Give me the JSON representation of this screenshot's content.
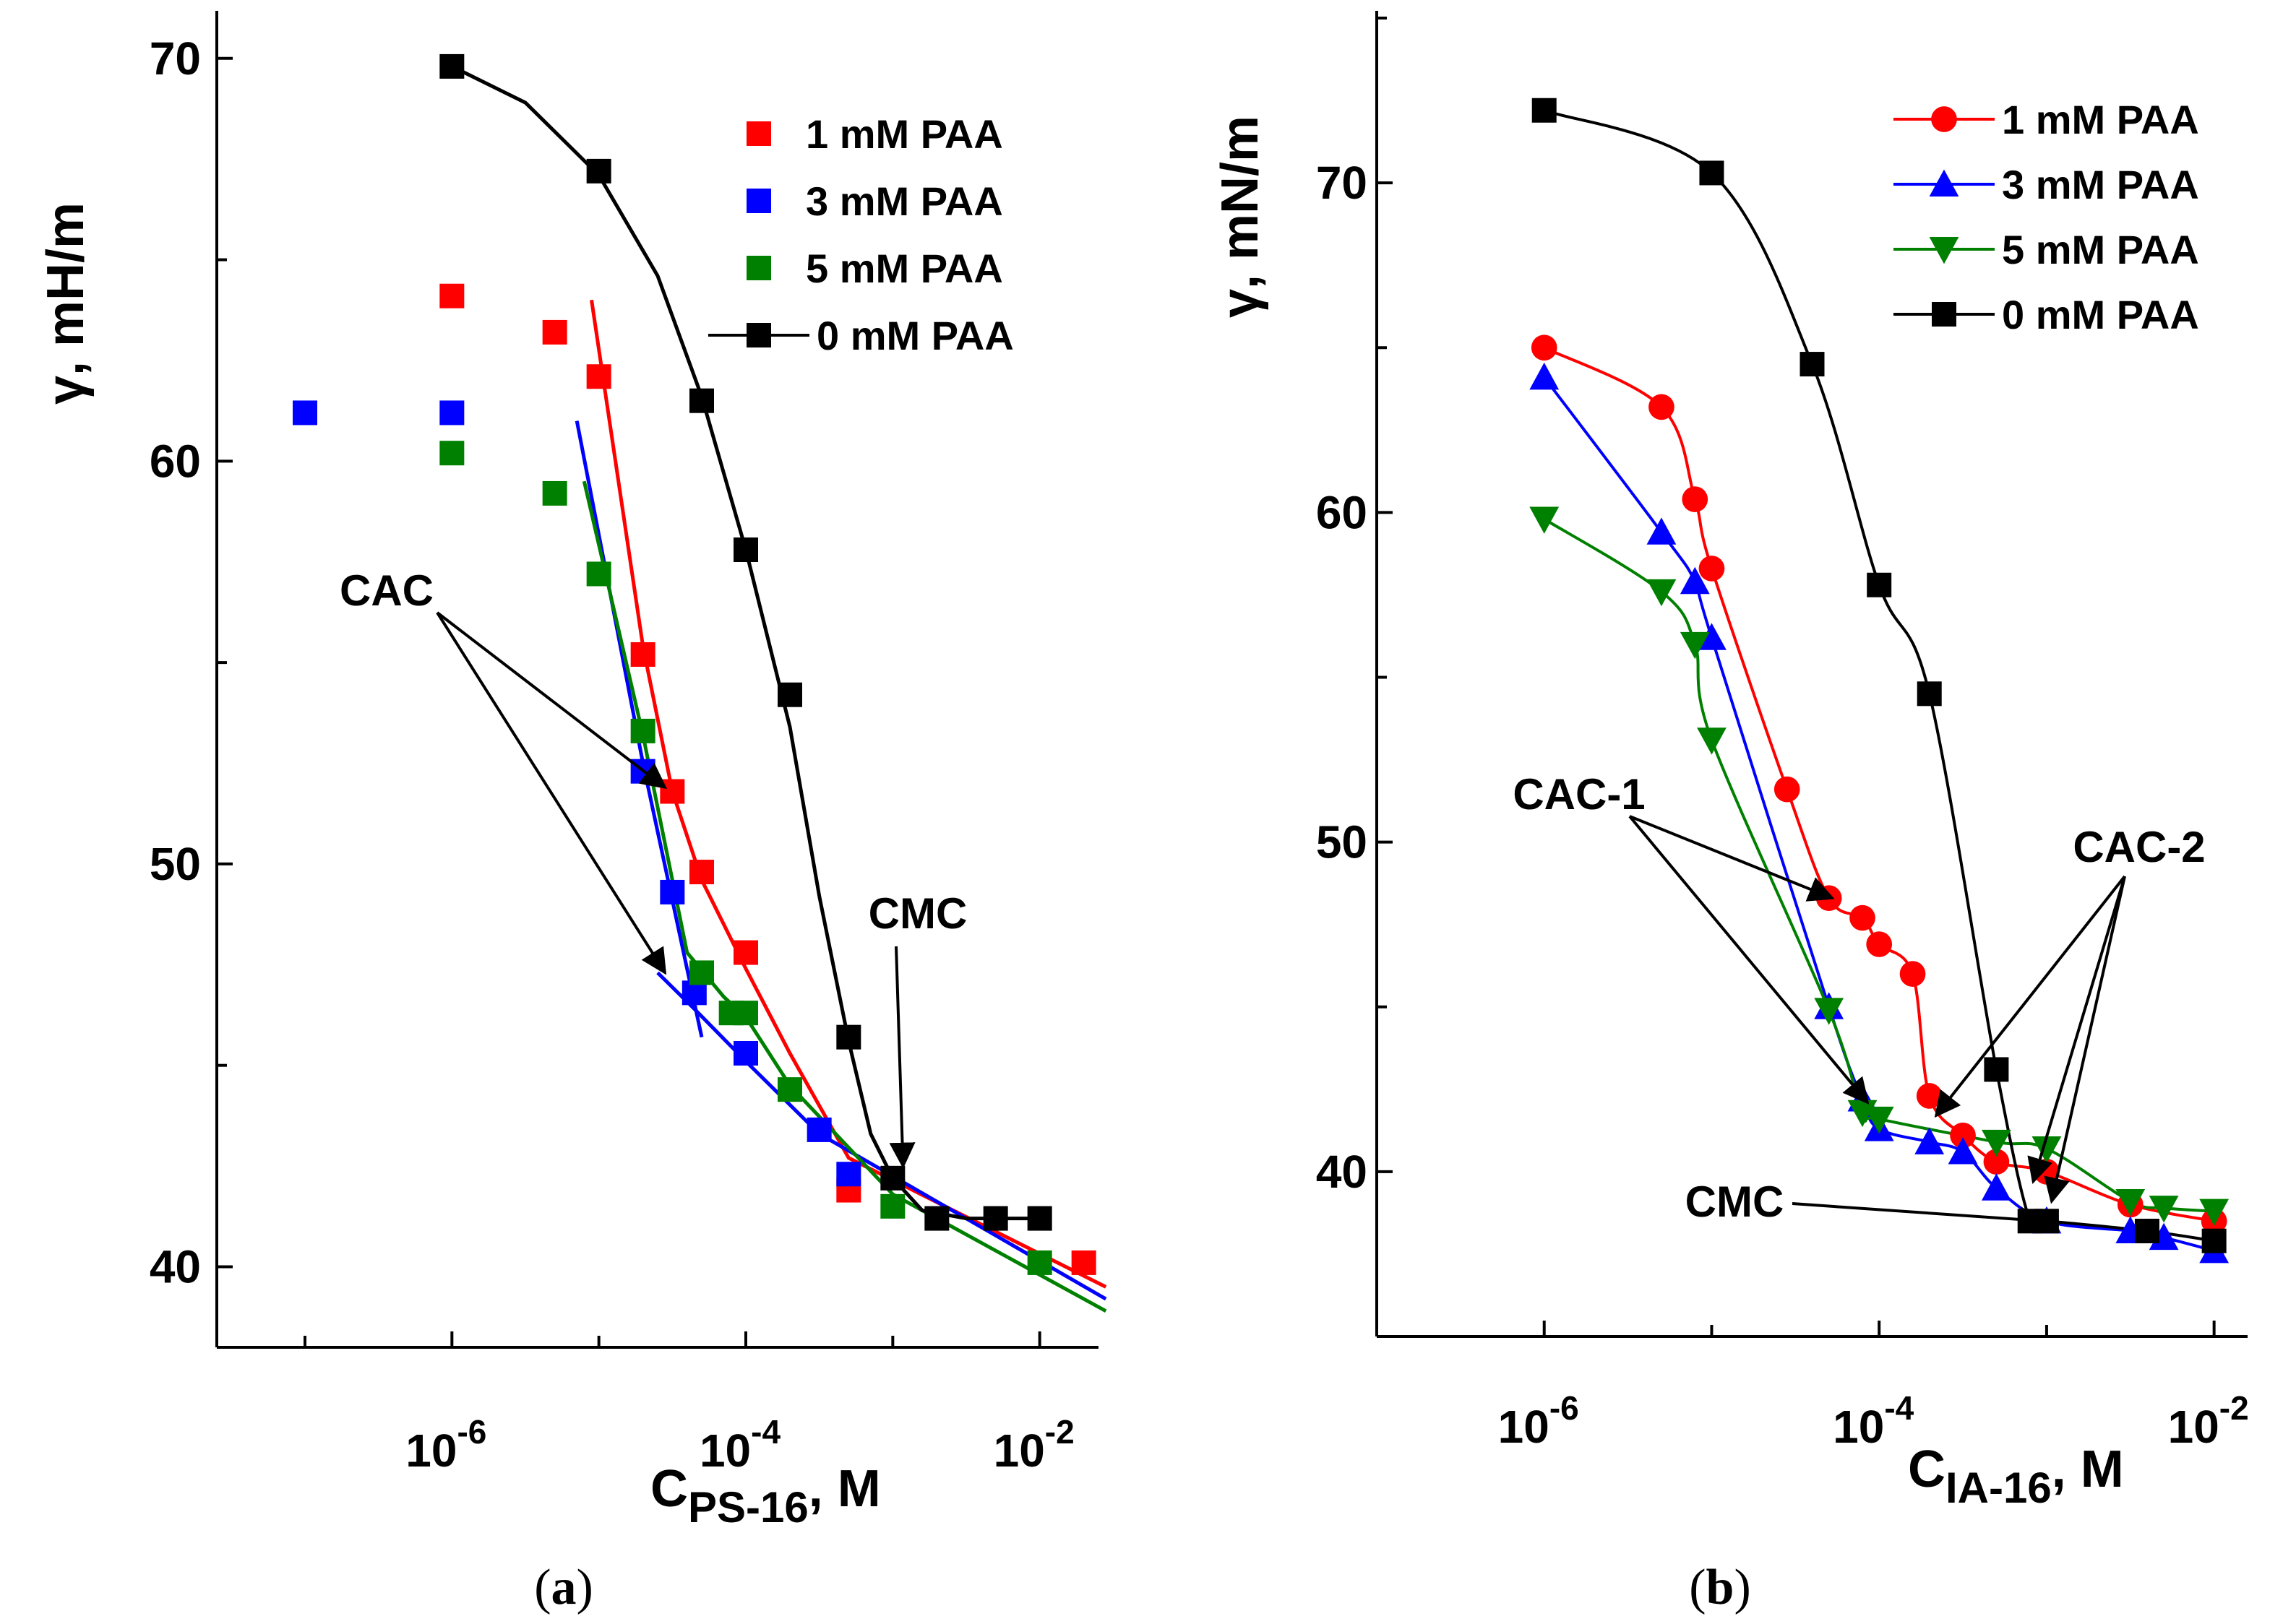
{
  "chart_data": [
    {
      "type": "scatter",
      "panel_caption": "a",
      "ylabel": "γ, mH/m",
      "xlabel_main": "C",
      "xlabel_sub": "PS-16",
      "xlabel_unit": ", M",
      "xscale": "log",
      "xlim_log10": [
        -7.6,
        -1.6
      ],
      "ylim": [
        38,
        71
      ],
      "x_tick_labels": [
        {
          "base": "10",
          "exp": "-6",
          "log10": -6
        },
        {
          "base": "10",
          "exp": "-4",
          "log10": -4
        },
        {
          "base": "10",
          "exp": "-2",
          "log10": -2
        }
      ],
      "y_ticks": [
        40,
        50,
        60,
        70
      ],
      "legend_position": "top-right",
      "series": [
        {
          "name": "1 mM PAA",
          "color": "#ff0000",
          "marker": "square",
          "legend_line": false,
          "points": [
            [
              -6,
              64.1
            ],
            [
              -5.3,
              63.2
            ],
            [
              -5,
              62.1
            ],
            [
              -4.7,
              55.2
            ],
            [
              -4.5,
              51.8
            ],
            [
              -4.3,
              49.8
            ],
            [
              -4,
              47.8
            ],
            [
              -3.3,
              41.9
            ],
            [
              -1.7,
              40.1
            ]
          ]
        },
        {
          "name": "3 mM PAA",
          "color": "#0000ff",
          "marker": "square",
          "legend_line": false,
          "points": [
            [
              -7,
              61.2
            ],
            [
              -6,
              61.2
            ],
            [
              -4.7,
              52.3
            ],
            [
              -4.5,
              49.3
            ],
            [
              -4.35,
              46.8
            ],
            [
              -4,
              45.3
            ],
            [
              -3.5,
              43.4
            ],
            [
              -3.3,
              42.3
            ]
          ]
        },
        {
          "name": "5 mM PAA",
          "color": "#008000",
          "marker": "square",
          "legend_line": false,
          "points": [
            [
              -6,
              60.2
            ],
            [
              -5.3,
              59.2
            ],
            [
              -5,
              57.2
            ],
            [
              -4.7,
              53.3
            ],
            [
              -4.3,
              47.3
            ],
            [
              -4.1,
              46.3
            ],
            [
              -4,
              46.3
            ],
            [
              -3.7,
              44.4
            ],
            [
              -3,
              41.5
            ],
            [
              -2,
              40.1
            ]
          ]
        },
        {
          "name": "0 mM PAA",
          "color": "#000000",
          "marker": "square",
          "legend_line": true,
          "points": [
            [
              -6,
              69.8
            ],
            [
              -5,
              67.2
            ],
            [
              -4.3,
              61.5
            ],
            [
              -4,
              57.8
            ],
            [
              -3.7,
              54.2
            ],
            [
              -3.3,
              45.7
            ],
            [
              -3,
              42.2
            ],
            [
              -2.7,
              41.2
            ],
            [
              -2.3,
              41.2
            ],
            [
              -2,
              41.2
            ]
          ]
        }
      ],
      "fit_lines": [
        {
          "color": "#ff0000",
          "points": [
            [
              -5.05,
              64
            ],
            [
              -4.7,
              55.4
            ],
            [
              -4.5,
              51.8
            ],
            [
              -4.3,
              49.6
            ],
            [
              -4,
              47.4
            ],
            [
              -3.7,
              45.3
            ],
            [
              -3.3,
              42.7
            ],
            [
              -1.55,
              39.5
            ]
          ]
        },
        {
          "color": "#0000ff",
          "points": [
            [
              -5.15,
              61
            ],
            [
              -4.7,
              52.5
            ],
            [
              -4.3,
              45.7
            ]
          ]
        },
        {
          "color": "#0000ff",
          "points": [
            [
              -4.6,
              47.3
            ],
            [
              -4.35,
              46.4
            ],
            [
              -4,
              45.1
            ],
            [
              -3.5,
              43.3
            ],
            [
              -1.55,
              39.2
            ]
          ]
        },
        {
          "color": "#008000",
          "points": [
            [
              -5.1,
              59.5
            ],
            [
              -4.7,
              53.2
            ],
            [
              -4.4,
              47.8
            ],
            [
              -4.15,
              46.7
            ],
            [
              -4,
              46.2
            ],
            [
              -3.7,
              44.5
            ],
            [
              -3,
              41.8
            ],
            [
              -1.55,
              38.9
            ]
          ]
        },
        {
          "color": "#000000",
          "points": [
            [
              -6,
              69.8
            ],
            [
              -5.5,
              68.9
            ],
            [
              -5,
              67.1
            ],
            [
              -4.6,
              64.6
            ],
            [
              -4.3,
              61.6
            ],
            [
              -4,
              57.8
            ],
            [
              -3.7,
              53.4
            ],
            [
              -3.5,
              49.2
            ],
            [
              -3.3,
              45.6
            ],
            [
              -3.15,
              43.3
            ],
            [
              -3,
              42.2
            ],
            [
              -2.8,
              41.4
            ],
            [
              -2.5,
              41.2
            ],
            [
              -2,
              41.2
            ]
          ]
        }
      ],
      "annotations": [
        {
          "text": "CAC",
          "at": [
            -5.6,
            54.5
          ],
          "arrows": [
            [
              -4.55,
              51.9
            ],
            [
              -4.55,
              47.3
            ]
          ]
        },
        {
          "text": "CMC",
          "at": [
            -2.45,
            48.2
          ],
          "arrows": [
            [
              -2.93,
              42.5
            ]
          ]
        }
      ]
    },
    {
      "type": "line",
      "panel_caption": "b",
      "ylabel": "γ, mN/m",
      "xlabel_main": "C",
      "xlabel_sub": "IA-16",
      "xlabel_unit": ", M",
      "xscale": "log",
      "xlim_log10": [
        -7,
        -1.8
      ],
      "ylim": [
        35,
        75
      ],
      "x_tick_labels": [
        {
          "base": "10",
          "exp": "-6",
          "log10": -6
        },
        {
          "base": "10",
          "exp": "-4",
          "log10": -4
        },
        {
          "base": "10",
          "exp": "-2",
          "log10": -2
        }
      ],
      "y_ticks": [
        40,
        50,
        60,
        70
      ],
      "legend_position": "top-right",
      "series": [
        {
          "name": "1 mM PAA",
          "color": "#ff0000",
          "marker": "circle",
          "legend_line": true,
          "points": [
            [
              -6,
              65
            ],
            [
              -5.3,
              63.2
            ],
            [
              -5.1,
              60.4
            ],
            [
              -5,
              58.3
            ],
            [
              -4.55,
              51.6
            ],
            [
              -4.3,
              48.3
            ],
            [
              -4.1,
              47.7
            ],
            [
              -4,
              46.9
            ],
            [
              -3.8,
              46
            ],
            [
              -3.7,
              42.3
            ],
            [
              -3.5,
              41.1
            ],
            [
              -3.3,
              40.3
            ],
            [
              -3,
              40
            ],
            [
              -2.5,
              39
            ],
            [
              -2,
              38.5
            ]
          ]
        },
        {
          "name": "3 mM PAA",
          "color": "#0000ff",
          "marker": "triangle-up",
          "legend_line": true,
          "points": [
            [
              -6,
              64.1
            ],
            [
              -5.3,
              59.4
            ],
            [
              -5.1,
              57.9
            ],
            [
              -5,
              56.2
            ],
            [
              -4.3,
              45
            ],
            [
              -4.1,
              42.2
            ],
            [
              -4,
              41.3
            ],
            [
              -3.7,
              40.9
            ],
            [
              -3.5,
              40.6
            ],
            [
              -3.3,
              39.5
            ],
            [
              -3,
              38.5
            ],
            [
              -2.5,
              38.2
            ],
            [
              -2.3,
              38
            ],
            [
              -2,
              37.6
            ]
          ]
        },
        {
          "name": "5 mM PAA",
          "color": "#008000",
          "marker": "triangle-down",
          "legend_line": true,
          "points": [
            [
              -6,
              59.8
            ],
            [
              -5.3,
              57.6
            ],
            [
              -5.1,
              56
            ],
            [
              -5,
              53.1
            ],
            [
              -4.3,
              44.9
            ],
            [
              -4.1,
              41.8
            ],
            [
              -4,
              41.6
            ],
            [
              -3.3,
              40.9
            ],
            [
              -3,
              40.7
            ],
            [
              -2.5,
              39.1
            ],
            [
              -2.3,
              38.9
            ],
            [
              -2,
              38.8
            ]
          ]
        },
        {
          "name": "0 mM PAA",
          "color": "#000000",
          "marker": "square",
          "legend_line": true,
          "points": [
            [
              -6,
              72.2
            ],
            [
              -5,
              70.3
            ],
            [
              -4.4,
              64.5
            ],
            [
              -4,
              57.8
            ],
            [
              -3.7,
              54.5
            ],
            [
              -3.3,
              43.1
            ],
            [
              -3.1,
              38.5
            ],
            [
              -3,
              38.5
            ],
            [
              -2.4,
              38.2
            ],
            [
              -2,
              37.9
            ]
          ]
        }
      ],
      "annotations": [
        {
          "text": "CAC-1",
          "at": [
            -5.45,
            51.2
          ],
          "arrows": [
            [
              -4.28,
              48.3
            ],
            [
              -4.07,
              42.1
            ]
          ]
        },
        {
          "text": "CAC-2",
          "at": [
            -2.5,
            49.6
          ],
          "arrows": [
            [
              -3.66,
              41.7
            ],
            [
              -3.08,
              39.7
            ],
            [
              -2.97,
              39.1
            ]
          ]
        },
        {
          "text": "CMC",
          "at": [
            -3.95,
            38.8
          ],
          "arrows": [
            [
              -3.02,
              38.5
            ]
          ]
        }
      ]
    }
  ]
}
